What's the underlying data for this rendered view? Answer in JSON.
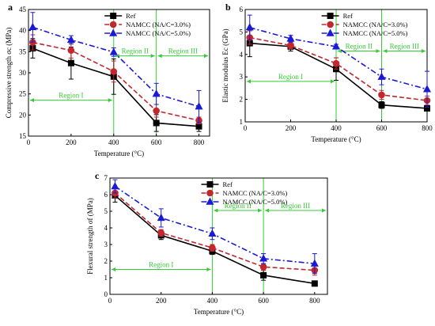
{
  "series_styles": [
    {
      "color": "#000000",
      "marker": "square",
      "dash": ""
    },
    {
      "color": "#c0282d",
      "marker": "circle",
      "dash": "6,3"
    },
    {
      "color": "#1a1ad6",
      "marker": "triangle",
      "dash": "7,3,2,3"
    }
  ],
  "region_color": "#33cc33",
  "chart_data": [
    {
      "panel": "a",
      "type": "line",
      "xlabel": "Temperature (°C)",
      "ylabel": "Compressive strength σc (MPa)",
      "xlim": [
        0,
        850
      ],
      "ylim": [
        15,
        45
      ],
      "xticks": [
        0,
        200,
        400,
        600,
        800
      ],
      "yticks": [
        15,
        20,
        25,
        30,
        35,
        40,
        45
      ],
      "x": [
        20,
        200,
        400,
        600,
        800
      ],
      "series": [
        {
          "name": "Ref",
          "values": [
            35.8,
            32.3,
            29.1,
            18.1,
            17.3
          ],
          "errors": [
            2.3,
            3.8,
            4.2,
            2.0,
            1.2
          ]
        },
        {
          "name": "NAMCC (NA/C=3.0%)",
          "values": [
            37.2,
            35.3,
            30.3,
            21.0,
            18.7
          ],
          "errors": [
            1.8,
            1.8,
            2.5,
            1.5,
            0.8
          ]
        },
        {
          "name": "NAMCC (NA/C=5.0%)",
          "values": [
            40.8,
            37.8,
            34.9,
            25.0,
            22.0
          ],
          "errors": [
            3.5,
            1.0,
            1.0,
            2.5,
            3.8
          ]
        }
      ],
      "regions": [
        {
          "label": "Region I",
          "from": 0,
          "to": 400,
          "level": 23.5
        },
        {
          "label": "Region II",
          "from": 400,
          "to": 600,
          "level": 34.0
        },
        {
          "label": "Region III",
          "from": 600,
          "to": 850,
          "level": 34.0
        }
      ],
      "legend": "top-right",
      "grid": false
    },
    {
      "panel": "b",
      "type": "line",
      "xlabel": "Temperature (°C)",
      "ylabel": "Elastic modulus Ec (GPa)",
      "xlim": [
        0,
        800
      ],
      "ylim": [
        1,
        6
      ],
      "xticks": [
        0,
        200,
        400,
        600,
        800
      ],
      "yticks": [
        1,
        2,
        3,
        4,
        5,
        6
      ],
      "x": [
        20,
        200,
        400,
        600,
        800
      ],
      "series": [
        {
          "name": "Ref",
          "values": [
            4.5,
            4.35,
            3.35,
            1.75,
            1.6
          ],
          "errors": [
            0.6,
            0.2,
            0.5,
            0.15,
            0.1
          ]
        },
        {
          "name": "NAMCC (NA/C=3.0%)",
          "values": [
            4.75,
            4.4,
            3.6,
            2.2,
            1.95
          ],
          "errors": [
            0.3,
            0.15,
            0.25,
            0.2,
            0.2
          ]
        },
        {
          "name": "NAMCC (NA/C=5.0%)",
          "values": [
            5.2,
            4.7,
            4.35,
            3.0,
            2.45
          ],
          "errors": [
            0.55,
            0.15,
            0.1,
            0.35,
            0.8
          ]
        }
      ],
      "regions": [
        {
          "label": "Region I",
          "from": 0,
          "to": 400,
          "level": 2.8
        },
        {
          "label": "Region II",
          "from": 400,
          "to": 600,
          "level": 4.15
        },
        {
          "label": "Region III",
          "from": 600,
          "to": 800,
          "level": 4.15
        }
      ],
      "legend": "top-right",
      "grid": false
    },
    {
      "panel": "c",
      "type": "line",
      "xlabel": "Temperature (°C)",
      "ylabel": "Flexural strength σf (MPa)",
      "xlim": [
        0,
        850
      ],
      "ylim": [
        0,
        7
      ],
      "xticks": [
        0,
        200,
        400,
        600,
        800
      ],
      "yticks": [
        0,
        1,
        2,
        3,
        4,
        5,
        6,
        7
      ],
      "x": [
        20,
        200,
        400,
        600,
        800
      ],
      "series": [
        {
          "name": "Ref",
          "values": [
            5.95,
            3.55,
            2.6,
            1.15,
            0.65
          ],
          "errors": [
            0.4,
            0.25,
            0.2,
            0.3,
            0.15
          ]
        },
        {
          "name": "NAMCC (NA/C=3.0%)",
          "values": [
            6.1,
            3.7,
            2.8,
            1.65,
            1.45
          ],
          "errors": [
            0.3,
            0.2,
            0.2,
            0.2,
            0.3
          ]
        },
        {
          "name": "NAMCC (NA/C=5.0%)",
          "values": [
            6.5,
            4.6,
            3.65,
            2.15,
            1.85
          ],
          "errors": [
            0.4,
            0.55,
            0.35,
            0.3,
            0.6
          ]
        }
      ],
      "regions": [
        {
          "label": "Region I",
          "from": 0,
          "to": 400,
          "level": 1.5
        },
        {
          "label": "Region II",
          "from": 400,
          "to": 600,
          "level": 5.05
        },
        {
          "label": "Region III",
          "from": 600,
          "to": 850,
          "level": 5.05
        }
      ],
      "legend": "top-right",
      "grid": false
    }
  ]
}
